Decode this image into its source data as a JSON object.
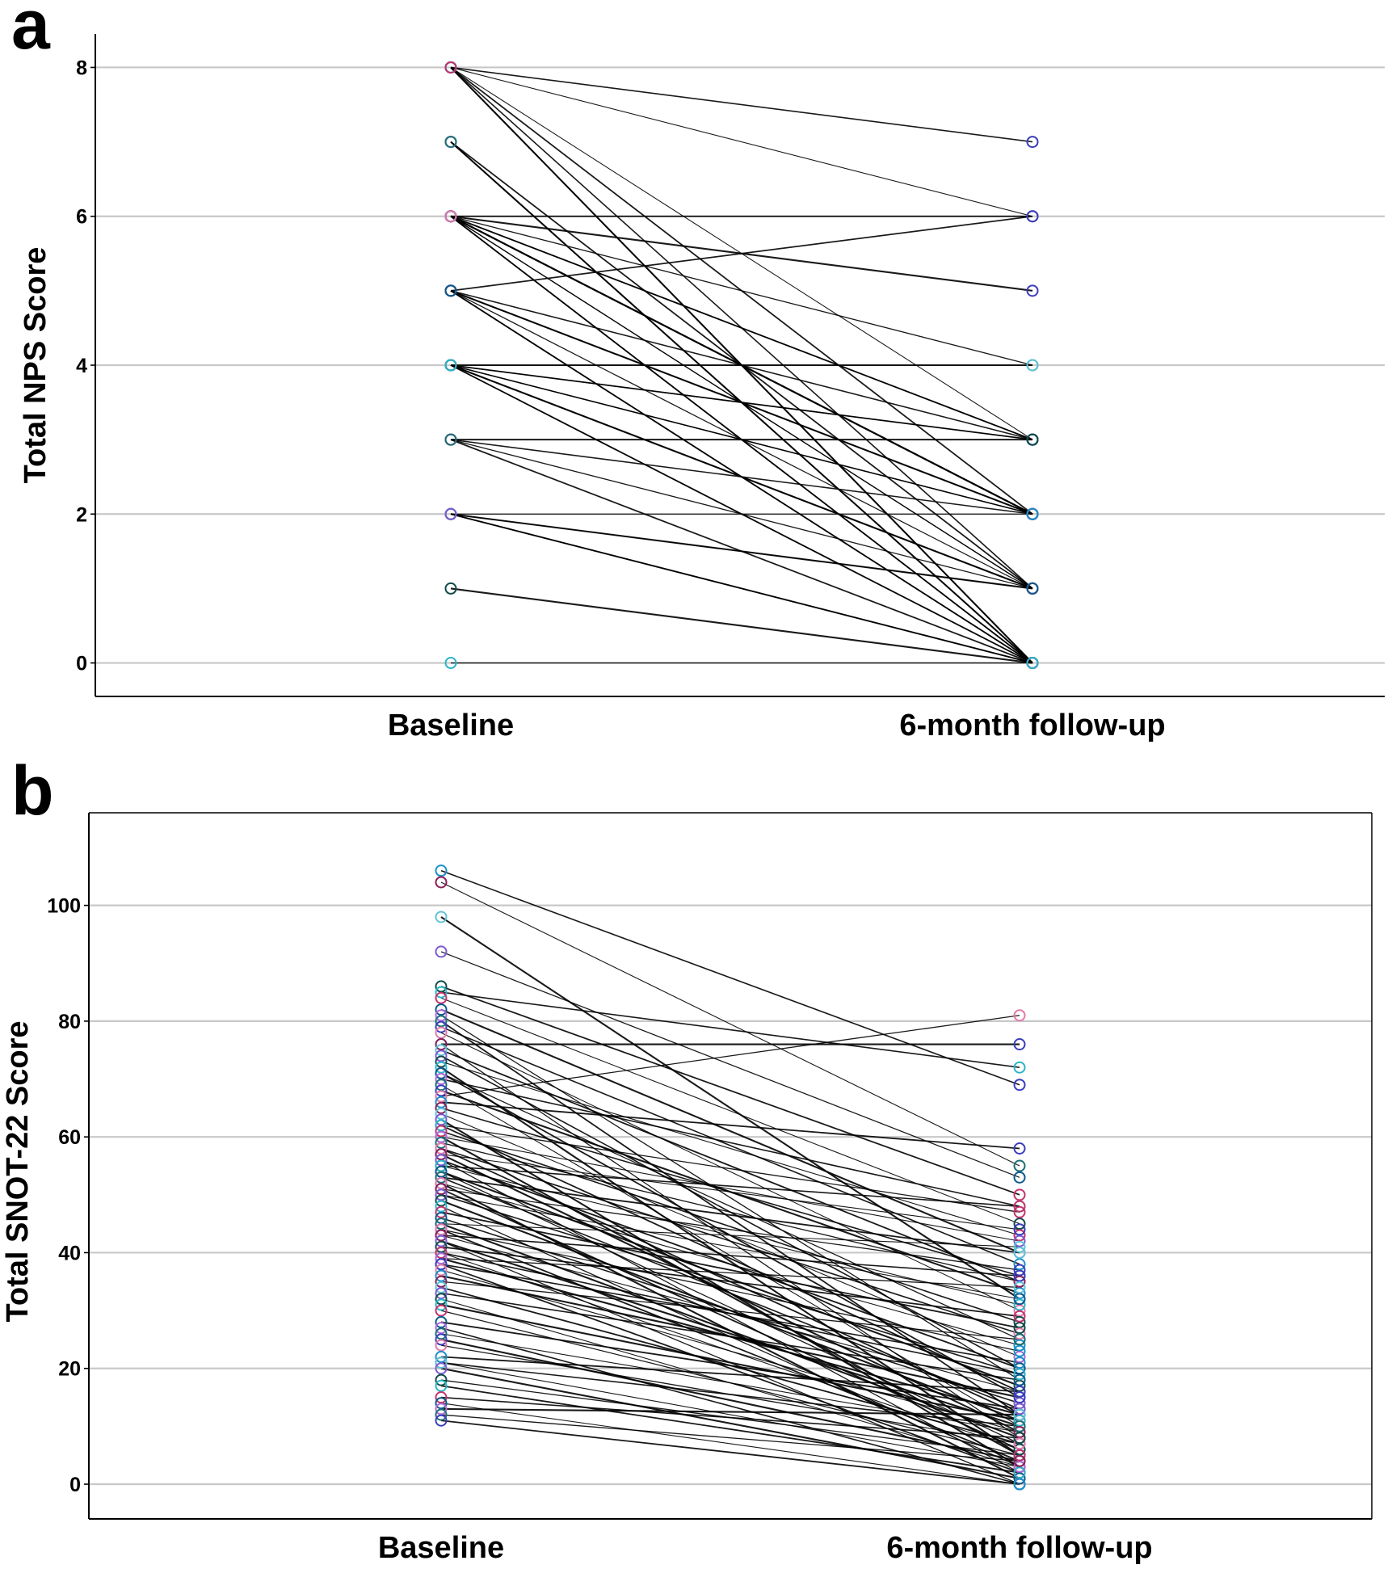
{
  "chart_data": [
    {
      "type": "line",
      "panel": "a",
      "ylabel": "Total NPS Score",
      "categories": [
        "Baseline",
        "6-month follow-up"
      ],
      "yticks": [
        0,
        2,
        4,
        6,
        8
      ],
      "ylim": [
        -0.45,
        8.45
      ],
      "grid": true,
      "pairs": [
        [
          8,
          7
        ],
        [
          8,
          6
        ],
        [
          8,
          0
        ],
        [
          8,
          0
        ],
        [
          8,
          2
        ],
        [
          8,
          1
        ],
        [
          8,
          3
        ],
        [
          7,
          0
        ],
        [
          7,
          0
        ],
        [
          7,
          1
        ],
        [
          6,
          6
        ],
        [
          6,
          6
        ],
        [
          6,
          5
        ],
        [
          6,
          4
        ],
        [
          6,
          3
        ],
        [
          6,
          3
        ],
        [
          6,
          2
        ],
        [
          6,
          2
        ],
        [
          6,
          1
        ],
        [
          6,
          0
        ],
        [
          6,
          0
        ],
        [
          6,
          0
        ],
        [
          6,
          2
        ],
        [
          6,
          1
        ],
        [
          5,
          6
        ],
        [
          5,
          3
        ],
        [
          5,
          2
        ],
        [
          5,
          2
        ],
        [
          5,
          1
        ],
        [
          5,
          0
        ],
        [
          5,
          0
        ],
        [
          5,
          2
        ],
        [
          4,
          4
        ],
        [
          4,
          3
        ],
        [
          4,
          3
        ],
        [
          4,
          2
        ],
        [
          4,
          2
        ],
        [
          4,
          1
        ],
        [
          4,
          0
        ],
        [
          4,
          0
        ],
        [
          4,
          1
        ],
        [
          4,
          2
        ],
        [
          3,
          3
        ],
        [
          3,
          1
        ],
        [
          3,
          0
        ],
        [
          3,
          2
        ],
        [
          2,
          2
        ],
        [
          2,
          1
        ],
        [
          2,
          0
        ],
        [
          2,
          0
        ],
        [
          2,
          0
        ],
        [
          2,
          1
        ],
        [
          1,
          0
        ],
        [
          0,
          0
        ]
      ]
    },
    {
      "type": "line",
      "panel": "b",
      "ylabel": "Total SNOT-22 Score",
      "categories": [
        "Baseline",
        "6-month follow-up"
      ],
      "yticks": [
        0,
        20,
        40,
        60,
        80,
        100
      ],
      "ylim": [
        -6,
        116
      ],
      "grid": true,
      "pairs": [
        [
          106,
          69
        ],
        [
          104,
          55
        ],
        [
          98,
          32
        ],
        [
          92,
          53
        ],
        [
          86,
          50
        ],
        [
          85,
          72
        ],
        [
          84,
          45
        ],
        [
          82,
          40
        ],
        [
          81,
          18
        ],
        [
          80,
          12
        ],
        [
          79,
          38
        ],
        [
          78,
          30
        ],
        [
          76,
          76
        ],
        [
          76,
          8
        ],
        [
          75,
          35
        ],
        [
          74,
          20
        ],
        [
          73,
          43
        ],
        [
          72,
          5
        ],
        [
          71,
          25
        ],
        [
          71,
          15
        ],
        [
          70,
          48
        ],
        [
          69,
          10
        ],
        [
          68,
          33
        ],
        [
          67,
          81
        ],
        [
          66,
          58
        ],
        [
          65,
          36
        ],
        [
          64,
          22
        ],
        [
          63,
          3
        ],
        [
          62,
          47
        ],
        [
          62,
          16
        ],
        [
          61,
          28
        ],
        [
          60,
          42
        ],
        [
          60,
          5
        ],
        [
          59,
          35
        ],
        [
          58,
          12
        ],
        [
          58,
          26
        ],
        [
          57,
          44
        ],
        [
          57,
          9
        ],
        [
          56,
          2
        ],
        [
          56,
          20
        ],
        [
          55,
          48
        ],
        [
          55,
          31
        ],
        [
          54,
          17
        ],
        [
          54,
          7
        ],
        [
          53,
          40
        ],
        [
          53,
          13
        ],
        [
          52,
          24
        ],
        [
          52,
          1
        ],
        [
          51,
          37
        ],
        [
          51,
          6
        ],
        [
          50,
          19
        ],
        [
          50,
          32
        ],
        [
          49,
          11
        ],
        [
          48,
          3
        ],
        [
          47,
          27
        ],
        [
          46,
          14
        ],
        [
          45,
          41
        ],
        [
          45,
          8
        ],
        [
          44,
          23
        ],
        [
          44,
          4
        ],
        [
          43,
          36
        ],
        [
          43,
          16
        ],
        [
          42,
          10
        ],
        [
          42,
          0
        ],
        [
          41,
          29
        ],
        [
          40,
          19
        ],
        [
          40,
          6
        ],
        [
          39,
          12
        ],
        [
          39,
          34
        ],
        [
          38,
          2
        ],
        [
          38,
          21
        ],
        [
          37,
          9
        ],
        [
          36,
          15
        ],
        [
          35,
          25
        ],
        [
          34,
          7
        ],
        [
          33,
          18
        ],
        [
          32,
          3
        ],
        [
          31,
          11
        ],
        [
          30,
          5
        ],
        [
          28,
          13
        ],
        [
          27,
          0
        ],
        [
          26,
          9
        ],
        [
          25,
          4
        ],
        [
          24,
          7
        ],
        [
          22,
          16
        ],
        [
          21,
          10
        ],
        [
          21,
          3
        ],
        [
          20,
          1
        ],
        [
          18,
          5
        ],
        [
          17,
          2
        ],
        [
          15,
          8
        ],
        [
          14,
          0
        ],
        [
          13,
          12
        ],
        [
          12,
          4
        ],
        [
          11,
          0
        ]
      ]
    }
  ],
  "colors": {
    "points": [
      "#0b5a8c",
      "#1a8fc9",
      "#2ab5c8",
      "#3a3dbd",
      "#7a5ad0",
      "#b06ad8",
      "#8a1f55",
      "#c2336e",
      "#e07aa8",
      "#124a4a",
      "#1d6f74",
      "#5fc3d8"
    ],
    "grid": "#c8c8c8",
    "lines": "#000000"
  }
}
